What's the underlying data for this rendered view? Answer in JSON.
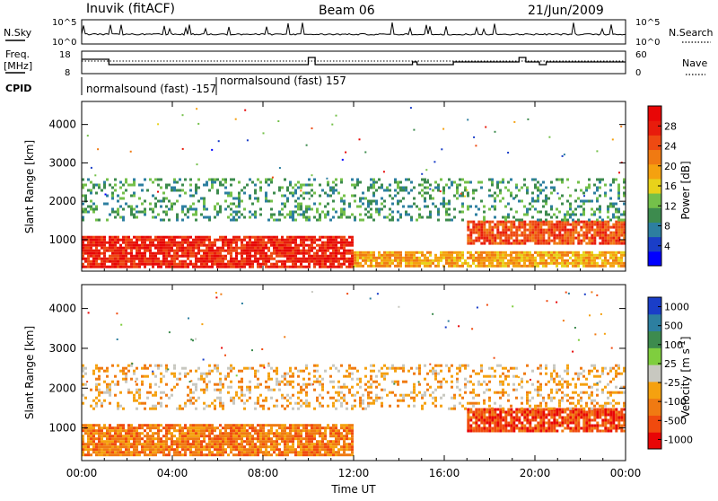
{
  "header": {
    "station": "Inuvik (fitACF)",
    "beam": "Beam 06",
    "date": "21/Jun/2009"
  },
  "noise_panel": {
    "left_label": "N.Sky",
    "right_label": "N.Search",
    "left_ticks": [
      "10^5",
      "10^0"
    ],
    "right_ticks": [
      "10^5",
      "10^0"
    ]
  },
  "freq_panel": {
    "left_label_1": "Freq.",
    "left_label_2": "[MHz]",
    "right_label": "Nave",
    "left_ticks": [
      "18",
      "8"
    ],
    "right_ticks": [
      "60",
      "0"
    ]
  },
  "cpid": {
    "label": "CPID",
    "segments": [
      {
        "text": "normalsound (fast) -157",
        "start_hour": 0
      },
      {
        "text": "normalsound (fast) 157",
        "start_hour": 6
      }
    ]
  },
  "x_axis": {
    "label": "Time UT",
    "ticks": [
      "00:00",
      "04:00",
      "08:00",
      "12:00",
      "16:00",
      "20:00",
      "00:00"
    ]
  },
  "colors": {
    "power_scale": [
      "#0000ff",
      "#1a3ec8",
      "#2d7fa0",
      "#3d8b4e",
      "#74c04a",
      "#e8d21a",
      "#f5a10f",
      "#f07a12",
      "#ee4a12",
      "#e81c0c",
      "#e80606"
    ],
    "velocity_scale": [
      "#e80606",
      "#f04a0e",
      "#f07a12",
      "#f5a10f",
      "#c8c8c0",
      "#7fce3e",
      "#3d8b4e",
      "#2d7fa0",
      "#1a3ec8"
    ]
  },
  "chart_data": [
    {
      "type": "heatmap",
      "title": "Power",
      "xlabel": "Time UT",
      "ylabel": "Slant Range [km]",
      "xlim": [
        0,
        24
      ],
      "ylim": [
        180,
        4600
      ],
      "y_ticks": [
        1000,
        2000,
        3000,
        4000
      ],
      "colorbar": {
        "label": "Power [dB]",
        "ticks": [
          "4",
          "8",
          "12",
          "16",
          "20",
          "24",
          "28"
        ],
        "range": [
          0,
          32
        ]
      },
      "features": [
        {
          "name": "near-range echo band",
          "t": [
            0,
            12
          ],
          "range_km": [
            300,
            1100
          ],
          "level": "28"
        },
        {
          "name": "near-range echo band",
          "t": [
            12,
            24
          ],
          "range_km": [
            300,
            700
          ],
          "level": "20"
        },
        {
          "name": "mid-range band",
          "t": [
            17,
            24
          ],
          "range_km": [
            900,
            1500
          ],
          "level": "24"
        },
        {
          "name": "far-range scatter",
          "t": [
            0,
            24
          ],
          "range_km": [
            1500,
            2600
          ],
          "level": "8"
        }
      ]
    },
    {
      "type": "heatmap",
      "title": "Velocity",
      "xlabel": "Time UT",
      "ylabel": "Slant Range [km]",
      "xlim": [
        0,
        24
      ],
      "ylim": [
        180,
        4600
      ],
      "y_ticks": [
        1000,
        2000,
        3000,
        4000
      ],
      "colorbar": {
        "label": "Velocity [m s^-1]",
        "ticks": [
          "1000",
          "500",
          "100",
          "25",
          "-25",
          "-100",
          "-500",
          "-1000"
        ]
      },
      "features": [
        {
          "name": "near-range",
          "t": [
            0,
            12
          ],
          "range_km": [
            300,
            1100
          ],
          "level": "-100"
        },
        {
          "name": "mid-range band",
          "t": [
            17,
            24
          ],
          "range_km": [
            900,
            1500
          ],
          "level": "-500"
        },
        {
          "name": "far-range scatter",
          "t": [
            0,
            24
          ],
          "range_km": [
            1500,
            2600
          ],
          "level": "-25"
        }
      ]
    }
  ]
}
